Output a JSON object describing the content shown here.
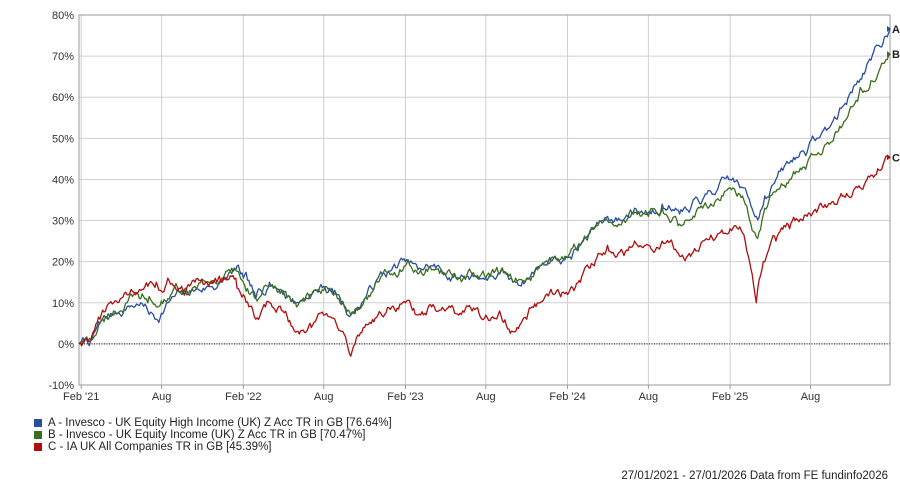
{
  "chart_data": {
    "type": "line",
    "title": "",
    "xlabel": "",
    "ylabel": "",
    "x_range": [
      "2021-01-27",
      "2026-01-27"
    ],
    "ylim": [
      -10,
      80
    ],
    "y_ticks": [
      -10,
      0,
      10,
      20,
      30,
      40,
      50,
      60,
      70,
      80
    ],
    "y_tick_labels": [
      "-10%",
      "0%",
      "10%",
      "20%",
      "30%",
      "40%",
      "50%",
      "60%",
      "70%",
      "80%"
    ],
    "x_ticks": [
      {
        "date": "2021-02-01",
        "label": "Feb '21"
      },
      {
        "date": "2021-08-01",
        "label": "Aug"
      },
      {
        "date": "2022-02-01",
        "label": "Feb '22"
      },
      {
        "date": "2022-08-01",
        "label": "Aug"
      },
      {
        "date": "2023-02-01",
        "label": "Feb '23"
      },
      {
        "date": "2023-08-01",
        "label": "Aug"
      },
      {
        "date": "2024-02-01",
        "label": "Feb '24"
      },
      {
        "date": "2024-08-01",
        "label": "Aug"
      },
      {
        "date": "2025-02-01",
        "label": "Feb '25"
      },
      {
        "date": "2025-08-01",
        "label": "Aug"
      }
    ],
    "grid": true,
    "zero_line": "dotted",
    "series": [
      {
        "id": "A",
        "name": "A - Invesco - UK Equity High Income (UK) Z Acc TR in GB [76.64%]",
        "color": "#2a4f9e",
        "points": [
          [
            "2021-01-27",
            0
          ],
          [
            "2021-02-25",
            1
          ],
          [
            "2021-03-15",
            5
          ],
          [
            "2021-04-15",
            7
          ],
          [
            "2021-05-15",
            9
          ],
          [
            "2021-06-15",
            10
          ],
          [
            "2021-07-01",
            8
          ],
          [
            "2021-07-20",
            6
          ],
          [
            "2021-08-15",
            10
          ],
          [
            "2021-09-15",
            12
          ],
          [
            "2021-10-15",
            13
          ],
          [
            "2021-11-15",
            14
          ],
          [
            "2021-12-15",
            15
          ],
          [
            "2022-01-15",
            18
          ],
          [
            "2022-02-01",
            16
          ],
          [
            "2022-03-01",
            11
          ],
          [
            "2022-04-01",
            15
          ],
          [
            "2022-05-01",
            13
          ],
          [
            "2022-06-01",
            10
          ],
          [
            "2022-07-01",
            12
          ],
          [
            "2022-08-01",
            14
          ],
          [
            "2022-09-01",
            12
          ],
          [
            "2022-10-01",
            7
          ],
          [
            "2022-11-01",
            11
          ],
          [
            "2022-12-01",
            16
          ],
          [
            "2023-01-01",
            18
          ],
          [
            "2023-02-01",
            20
          ],
          [
            "2023-03-01",
            18
          ],
          [
            "2023-04-01",
            19
          ],
          [
            "2023-05-01",
            17
          ],
          [
            "2023-06-01",
            16
          ],
          [
            "2023-07-01",
            17
          ],
          [
            "2023-08-01",
            16
          ],
          [
            "2023-09-01",
            17
          ],
          [
            "2023-10-01",
            15
          ],
          [
            "2023-11-01",
            16
          ],
          [
            "2023-12-01",
            19
          ],
          [
            "2024-01-01",
            21
          ],
          [
            "2024-02-01",
            21
          ],
          [
            "2024-03-01",
            24
          ],
          [
            "2024-04-01",
            28
          ],
          [
            "2024-05-01",
            31
          ],
          [
            "2024-06-01",
            30
          ],
          [
            "2024-07-01",
            33
          ],
          [
            "2024-08-01",
            32
          ],
          [
            "2024-09-01",
            34
          ],
          [
            "2024-10-01",
            33
          ],
          [
            "2024-11-01",
            32
          ],
          [
            "2024-12-01",
            35
          ],
          [
            "2025-01-01",
            37
          ],
          [
            "2025-02-01",
            40
          ],
          [
            "2025-03-01",
            38
          ],
          [
            "2025-04-01",
            31
          ],
          [
            "2025-04-20",
            36
          ],
          [
            "2025-05-15",
            40
          ],
          [
            "2025-06-15",
            44
          ],
          [
            "2025-07-15",
            47
          ],
          [
            "2025-08-15",
            50
          ],
          [
            "2025-09-15",
            53
          ],
          [
            "2025-10-15",
            58
          ],
          [
            "2025-11-15",
            64
          ],
          [
            "2025-12-15",
            69
          ],
          [
            "2026-01-27",
            76.64
          ]
        ]
      },
      {
        "id": "B",
        "name": "B - Invesco - UK Equity Income (UK) Z Acc TR in GB [70.47%]",
        "color": "#3b6e1d",
        "points": [
          [
            "2021-01-27",
            0
          ],
          [
            "2021-02-25",
            1
          ],
          [
            "2021-03-15",
            5
          ],
          [
            "2021-04-15",
            8
          ],
          [
            "2021-05-15",
            10
          ],
          [
            "2021-06-15",
            11
          ],
          [
            "2021-07-01",
            10
          ],
          [
            "2021-07-20",
            9
          ],
          [
            "2021-08-15",
            11
          ],
          [
            "2021-09-15",
            13
          ],
          [
            "2021-10-15",
            14
          ],
          [
            "2021-11-15",
            15
          ],
          [
            "2021-12-15",
            16
          ],
          [
            "2022-01-15",
            18
          ],
          [
            "2022-02-01",
            15
          ],
          [
            "2022-03-01",
            11
          ],
          [
            "2022-04-01",
            14
          ],
          [
            "2022-05-01",
            12
          ],
          [
            "2022-06-01",
            9
          ],
          [
            "2022-07-01",
            11
          ],
          [
            "2022-08-01",
            13
          ],
          [
            "2022-09-01",
            11
          ],
          [
            "2022-10-01",
            7
          ],
          [
            "2022-11-01",
            11
          ],
          [
            "2022-12-01",
            15
          ],
          [
            "2023-01-01",
            17
          ],
          [
            "2023-02-01",
            19
          ],
          [
            "2023-03-01",
            17
          ],
          [
            "2023-04-01",
            18
          ],
          [
            "2023-05-01",
            17
          ],
          [
            "2023-06-01",
            16
          ],
          [
            "2023-07-01",
            17
          ],
          [
            "2023-08-01",
            16
          ],
          [
            "2023-09-01",
            17
          ],
          [
            "2023-10-01",
            15
          ],
          [
            "2023-11-01",
            16
          ],
          [
            "2023-12-01",
            19
          ],
          [
            "2024-01-01",
            21
          ],
          [
            "2024-02-01",
            21
          ],
          [
            "2024-03-01",
            24
          ],
          [
            "2024-04-01",
            28
          ],
          [
            "2024-05-01",
            30
          ],
          [
            "2024-06-01",
            29
          ],
          [
            "2024-07-01",
            32
          ],
          [
            "2024-08-01",
            31
          ],
          [
            "2024-09-01",
            33
          ],
          [
            "2024-10-01",
            31
          ],
          [
            "2024-11-01",
            30
          ],
          [
            "2024-12-01",
            33
          ],
          [
            "2025-01-01",
            35
          ],
          [
            "2025-02-01",
            38
          ],
          [
            "2025-03-01",
            36
          ],
          [
            "2025-04-01",
            26
          ],
          [
            "2025-04-20",
            33
          ],
          [
            "2025-05-15",
            37
          ],
          [
            "2025-06-15",
            40
          ],
          [
            "2025-07-15",
            43
          ],
          [
            "2025-08-15",
            46
          ],
          [
            "2025-09-15",
            49
          ],
          [
            "2025-10-15",
            54
          ],
          [
            "2025-11-15",
            59
          ],
          [
            "2025-12-15",
            64
          ],
          [
            "2026-01-27",
            70.47
          ]
        ]
      },
      {
        "id": "C",
        "name": "C - IA UK All Companies TR in GB [45.39%]",
        "color": "#b20c0c",
        "points": [
          [
            "2021-01-27",
            0
          ],
          [
            "2021-02-25",
            2
          ],
          [
            "2021-03-15",
            6
          ],
          [
            "2021-04-15",
            10
          ],
          [
            "2021-05-15",
            12
          ],
          [
            "2021-06-15",
            13
          ],
          [
            "2021-07-01",
            14
          ],
          [
            "2021-07-20",
            15
          ],
          [
            "2021-08-15",
            16
          ],
          [
            "2021-09-15",
            14
          ],
          [
            "2021-10-15",
            15
          ],
          [
            "2021-11-15",
            14
          ],
          [
            "2021-12-15",
            15
          ],
          [
            "2022-01-15",
            16
          ],
          [
            "2022-02-01",
            12
          ],
          [
            "2022-03-01",
            6
          ],
          [
            "2022-04-01",
            10
          ],
          [
            "2022-05-01",
            8
          ],
          [
            "2022-06-01",
            3
          ],
          [
            "2022-07-01",
            5
          ],
          [
            "2022-08-01",
            7
          ],
          [
            "2022-09-01",
            4
          ],
          [
            "2022-10-01",
            -3
          ],
          [
            "2022-11-01",
            4
          ],
          [
            "2022-12-01",
            7
          ],
          [
            "2023-01-01",
            9
          ],
          [
            "2023-02-01",
            10
          ],
          [
            "2023-03-01",
            7
          ],
          [
            "2023-04-01",
            9
          ],
          [
            "2023-05-01",
            8
          ],
          [
            "2023-06-01",
            7
          ],
          [
            "2023-07-01",
            8
          ],
          [
            "2023-08-01",
            7
          ],
          [
            "2023-09-01",
            8
          ],
          [
            "2023-10-01",
            3
          ],
          [
            "2023-11-01",
            6
          ],
          [
            "2023-12-01",
            10
          ],
          [
            "2024-01-01",
            12
          ],
          [
            "2024-02-01",
            12
          ],
          [
            "2024-03-01",
            15
          ],
          [
            "2024-04-01",
            19
          ],
          [
            "2024-05-01",
            24
          ],
          [
            "2024-06-01",
            23
          ],
          [
            "2024-07-01",
            25
          ],
          [
            "2024-08-01",
            24
          ],
          [
            "2024-09-01",
            25
          ],
          [
            "2024-10-01",
            23
          ],
          [
            "2024-11-01",
            22
          ],
          [
            "2024-12-01",
            25
          ],
          [
            "2025-01-01",
            26
          ],
          [
            "2025-02-01",
            28
          ],
          [
            "2025-03-01",
            27
          ],
          [
            "2025-04-01",
            10
          ],
          [
            "2025-04-20",
            20
          ],
          [
            "2025-05-15",
            25
          ],
          [
            "2025-06-15",
            28
          ],
          [
            "2025-07-15",
            30
          ],
          [
            "2025-08-15",
            32
          ],
          [
            "2025-09-15",
            34
          ],
          [
            "2025-10-15",
            36
          ],
          [
            "2025-11-15",
            38
          ],
          [
            "2025-12-15",
            41
          ],
          [
            "2026-01-27",
            45.39
          ]
        ]
      }
    ]
  },
  "footer": "27/01/2021 - 27/01/2026 Data from FE fundinfo2026"
}
